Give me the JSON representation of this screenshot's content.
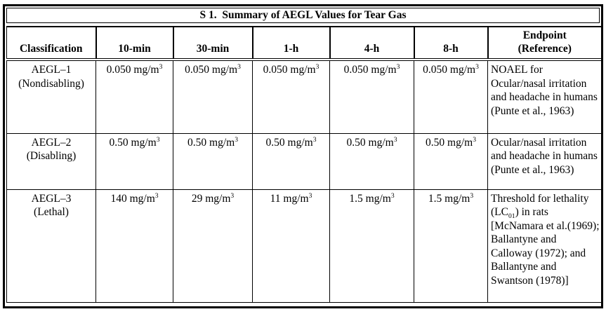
{
  "page": {
    "background_color": "#ffffff",
    "border_color": "#000000",
    "text_color": "#000000"
  },
  "table": {
    "title": "S 1.  Summary of AEGL Values for Tear Gas",
    "headers": [
      "Classification",
      "10-min",
      "30-min",
      "1-h",
      "4-h",
      "8-h"
    ],
    "endpoint_header": [
      "Endpoint",
      "(Reference)"
    ],
    "rows": [
      {
        "name_line1": "AEGL–1",
        "name_line2": "(Nondisabling)",
        "values": [
          [
            {
              "t": "0.050 mg/m"
            },
            {
              "t": "3",
              "s": "sup"
            }
          ],
          [
            {
              "t": "0.050 mg/m"
            },
            {
              "t": "3",
              "s": "sup"
            }
          ],
          [
            {
              "t": "0.050 mg/m"
            },
            {
              "t": "3",
              "s": "sup"
            }
          ],
          [
            {
              "t": "0.050 mg/m"
            },
            {
              "t": "3",
              "s": "sup"
            }
          ],
          [
            {
              "t": "0.050 mg/m"
            },
            {
              "t": "3",
              "s": "sup"
            }
          ]
        ],
        "endpoint": [
          {
            "t": "NOAEL for Ocular/nasal irritation and headache in humans (Punte et al., 1963)"
          }
        ]
      },
      {
        "name_line1": "AEGL–2",
        "name_line2": "(Disabling)",
        "values": [
          [
            {
              "t": "0.50 mg/m"
            },
            {
              "t": "3",
              "s": "sup"
            }
          ],
          [
            {
              "t": "0.50 mg/m"
            },
            {
              "t": "3",
              "s": "sup"
            }
          ],
          [
            {
              "t": "0.50 mg/m"
            },
            {
              "t": "3",
              "s": "sup"
            }
          ],
          [
            {
              "t": "0.50 mg/m"
            },
            {
              "t": "3",
              "s": "sup"
            }
          ],
          [
            {
              "t": "0.50 mg/m"
            },
            {
              "t": "3",
              "s": "sup"
            }
          ]
        ],
        "endpoint": [
          {
            "t": "Ocular/nasal irritation and headache in humans (Punte et al., 1963)"
          }
        ]
      },
      {
        "name_line1": "AEGL–3",
        "name_line2": "(Lethal)",
        "values": [
          [
            {
              "t": "140 mg/m"
            },
            {
              "t": "3",
              "s": "sup"
            }
          ],
          [
            {
              "t": "29 mg/m"
            },
            {
              "t": "3",
              "s": "sup"
            }
          ],
          [
            {
              "t": "11 mg/m"
            },
            {
              "t": "3",
              "s": "sup"
            }
          ],
          [
            {
              "t": "1.5 mg/m"
            },
            {
              "t": "3",
              "s": "sup"
            }
          ],
          [
            {
              "t": "1.5 mg/m"
            },
            {
              "t": "3",
              "s": "sup"
            }
          ]
        ],
        "endpoint": [
          {
            "t": "Threshold for lethality (LC"
          },
          {
            "t": "01",
            "s": "sub"
          },
          {
            "t": ") in rats [McNamara et al.(1969); Ballantyne and Calloway (1972); and Ballantyne and Swantson (1978)]"
          }
        ]
      }
    ]
  }
}
